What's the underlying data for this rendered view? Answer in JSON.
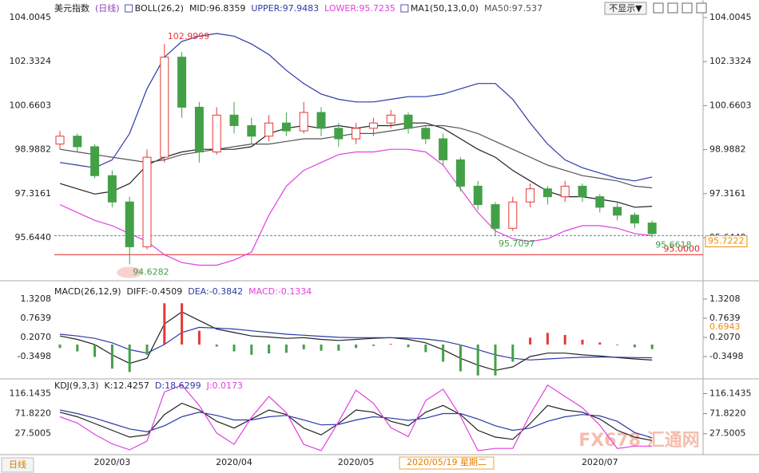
{
  "header": {
    "title": "美元指数",
    "period": "(日线)",
    "buttons": [
      "不显示▼"
    ],
    "tab": "日线",
    "watermark": "FX678 汇通网"
  },
  "chart_data": [
    {
      "type": "candlestick",
      "indicators": [
        "BOLL(26,2)",
        "MA1(50,13,0,0)"
      ],
      "categories": [
        null,
        null,
        null,
        "2020/03",
        null,
        null,
        null,
        null,
        null,
        null,
        "2020/04",
        null,
        null,
        null,
        null,
        null,
        null,
        "2020/05",
        null,
        null,
        null,
        null,
        null,
        null,
        null,
        null,
        null,
        null,
        null,
        null,
        null,
        "2020/07",
        null,
        null,
        null
      ],
      "crosshair_label": "2020/05/19 星期二",
      "up_color": "#e53935",
      "down_color": "#43a047",
      "open": [
        99.2,
        99.5,
        99.1,
        98.0,
        97.0,
        95.3,
        98.7,
        102.5,
        100.6,
        98.9,
        100.3,
        99.9,
        99.5,
        100.0,
        99.7,
        100.4,
        99.8,
        99.4,
        99.8,
        100.0,
        100.3,
        99.8,
        99.4,
        98.6,
        97.6,
        96.9,
        96.0,
        97.0,
        97.5,
        97.2,
        97.6,
        97.2,
        96.8,
        96.5,
        96.2
      ],
      "high": [
        99.7,
        99.6,
        99.2,
        98.2,
        97.2,
        99.0,
        102.9999,
        102.7,
        100.8,
        100.6,
        100.8,
        100.2,
        100.3,
        100.4,
        100.8,
        100.6,
        100.0,
        100.0,
        100.2,
        100.5,
        100.4,
        99.9,
        99.6,
        98.7,
        97.8,
        97.0,
        97.2,
        97.7,
        97.6,
        97.8,
        97.7,
        97.3,
        97.0,
        96.6,
        96.3
      ],
      "low": [
        99.0,
        98.9,
        97.9,
        96.8,
        94.6282,
        95.2,
        98.5,
        100.2,
        98.5,
        98.8,
        99.6,
        99.2,
        99.3,
        99.5,
        99.6,
        99.5,
        99.1,
        99.2,
        99.5,
        99.8,
        99.6,
        99.2,
        98.4,
        97.4,
        96.7,
        95.7097,
        95.9,
        96.8,
        96.9,
        97.0,
        97.0,
        96.6,
        96.3,
        96.0,
        95.6618
      ],
      "close": [
        99.5,
        99.1,
        98.0,
        97.0,
        95.3,
        98.7,
        102.5,
        100.6,
        98.9,
        100.3,
        99.9,
        99.5,
        100.0,
        99.7,
        100.4,
        99.8,
        99.4,
        99.8,
        100.0,
        100.3,
        99.8,
        99.4,
        98.6,
        97.6,
        96.9,
        96.0,
        97.0,
        97.5,
        97.2,
        97.6,
        97.2,
        96.8,
        96.5,
        96.2,
        95.8
      ],
      "series": [
        {
          "name": "MID:96.8359",
          "color": "#222222",
          "values": [
            97.7,
            97.5,
            97.3,
            97.4,
            97.7,
            98.4,
            98.7,
            98.9,
            99.0,
            99.0,
            99.0,
            99.1,
            99.6,
            99.8,
            99.9,
            99.8,
            99.9,
            99.8,
            99.9,
            99.9,
            100.0,
            100.0,
            99.8,
            99.4,
            99.0,
            98.7,
            98.2,
            97.8,
            97.4,
            97.2,
            97.2,
            97.1,
            97.0,
            96.8,
            96.8359
          ]
        },
        {
          "name": "UPPER:97.9483",
          "color": "#2b3aa8",
          "values": [
            98.5,
            98.4,
            98.3,
            98.6,
            99.6,
            101.3,
            102.5,
            103.1,
            103.3,
            103.4,
            103.3,
            103.0,
            102.6,
            102.0,
            101.5,
            101.1,
            100.9,
            100.8,
            100.8,
            100.9,
            101.0,
            101.0,
            101.1,
            101.3,
            101.5,
            101.5,
            100.9,
            100.0,
            99.2,
            98.6,
            98.3,
            98.1,
            97.9,
            97.8,
            97.9483
          ]
        },
        {
          "name": "LOWER:95.7235",
          "color": "#e040e0",
          "values": [
            96.9,
            96.6,
            96.3,
            96.1,
            95.8,
            95.5,
            95.0,
            94.7,
            94.6,
            94.6,
            94.8,
            95.1,
            96.5,
            97.6,
            98.2,
            98.5,
            98.8,
            98.9,
            98.9,
            99.0,
            99.0,
            98.9,
            98.4,
            97.5,
            96.6,
            95.9,
            95.6,
            95.5,
            95.6,
            95.9,
            96.1,
            96.1,
            96.0,
            95.8,
            95.7235
          ]
        },
        {
          "name": "MA50:97.537",
          "color": "#555555",
          "values": [
            99.0,
            98.9,
            98.8,
            98.7,
            98.6,
            98.5,
            98.6,
            98.8,
            98.9,
            99.0,
            99.1,
            99.2,
            99.2,
            99.3,
            99.4,
            99.4,
            99.5,
            99.6,
            99.6,
            99.7,
            99.8,
            99.9,
            99.9,
            99.8,
            99.6,
            99.3,
            99.0,
            98.7,
            98.4,
            98.2,
            98.0,
            97.9,
            97.8,
            97.6,
            97.537
          ]
        }
      ],
      "annotations": [
        {
          "value": 102.9999,
          "color": "#e53935"
        },
        {
          "value": 94.6282,
          "color": "#43a047"
        },
        {
          "value": 95.7097,
          "color": "#43a047"
        },
        {
          "value": 95.6618,
          "color": "#43a047"
        }
      ],
      "hlines": [
        {
          "value": 95,
          "label": "95.0000",
          "color": "#e02020"
        },
        {
          "value": 95.7222,
          "color": "#3a8fd8",
          "label_color": "#f08c00",
          "style": "dashed"
        }
      ],
      "ylim": [
        94.22,
        104.52
      ],
      "yticks": [
        104.0045,
        102.3324,
        100.6603,
        98.9882,
        97.3161,
        {
          "value": 95.644,
          "label": "95.6440"
        }
      ]
    },
    {
      "type": "macd",
      "indicators": [
        "MACD(26,12,9)"
      ],
      "up_color": "#e53935",
      "down_color": "#43a047",
      "series": [
        {
          "name": "DIFF:-0.4509",
          "color": "#222222",
          "values": [
            0.25,
            0.15,
            0.0,
            -0.3,
            -0.55,
            -0.4,
            0.6,
            0.95,
            0.7,
            0.45,
            0.35,
            0.25,
            0.22,
            0.18,
            0.2,
            0.15,
            0.12,
            0.15,
            0.18,
            0.2,
            0.15,
            0.05,
            -0.15,
            -0.4,
            -0.6,
            -0.75,
            -0.65,
            -0.35,
            -0.25,
            -0.25,
            -0.3,
            -0.33,
            -0.38,
            -0.42,
            -0.4509
          ]
        },
        {
          "name": "DEA:-0.3842",
          "color": "#2b3aa8",
          "values": [
            0.3,
            0.25,
            0.18,
            0.05,
            -0.15,
            -0.25,
            0.0,
            0.35,
            0.5,
            0.48,
            0.45,
            0.4,
            0.35,
            0.3,
            0.27,
            0.24,
            0.21,
            0.2,
            0.2,
            0.2,
            0.19,
            0.16,
            0.1,
            -0.01,
            -0.15,
            -0.3,
            -0.4,
            -0.45,
            -0.42,
            -0.39,
            -0.37,
            -0.36,
            -0.37,
            -0.38,
            -0.3842
          ]
        },
        {
          "name": "MACD:-0.1334",
          "color": "#e040e0",
          "type": "bar",
          "values": [
            -0.1,
            -0.2,
            -0.36,
            -0.7,
            -0.8,
            -0.3,
            1.2,
            1.2,
            0.4,
            -0.06,
            -0.2,
            -0.3,
            -0.26,
            -0.24,
            -0.14,
            -0.18,
            -0.18,
            -0.1,
            -0.04,
            0.02,
            -0.08,
            -0.22,
            -0.5,
            -0.78,
            -0.9,
            -0.9,
            -0.5,
            0.2,
            0.34,
            0.28,
            0.14,
            0.06,
            -0.02,
            -0.08,
            -0.1334
          ]
        }
      ],
      "price_label": 0.6943,
      "ylim": [
        -0.883,
        1.669
      ],
      "yticks": [
        1.3208,
        0.7639,
        {
          "value": 0.207,
          "label": "0.2070"
        },
        -0.3498
      ]
    },
    {
      "type": "kdj",
      "indicators": [
        "KDJ(9,3,3)"
      ],
      "series": [
        {
          "name": "K:12.4257",
          "color": "#222222",
          "values": [
            75,
            65,
            50,
            35,
            20,
            25,
            70,
            95,
            80,
            55,
            40,
            60,
            80,
            70,
            40,
            25,
            50,
            80,
            75,
            55,
            45,
            75,
            90,
            70,
            35,
            20,
            15,
            50,
            90,
            80,
            75,
            60,
            35,
            20,
            12.4257
          ]
        },
        {
          "name": "D:18.6299",
          "color": "#2b3aa8",
          "values": [
            80,
            72,
            62,
            50,
            38,
            32,
            45,
            65,
            75,
            68,
            58,
            58,
            65,
            68,
            58,
            47,
            48,
            58,
            65,
            62,
            57,
            62,
            72,
            72,
            60,
            45,
            35,
            40,
            55,
            65,
            70,
            67,
            55,
            30,
            18.6299
          ]
        },
        {
          "name": "J:0.0173",
          "color": "#e040e0",
          "values": [
            65,
            51,
            26,
            5,
            -8,
            11,
            120,
            135,
            90,
            29,
            4,
            64,
            110,
            74,
            4,
            -10,
            54,
            124,
            95,
            41,
            21,
            101,
            126,
            66,
            -10,
            -5,
            -5,
            70,
            135,
            110,
            85,
            46,
            -5,
            0,
            0.0173
          ]
        }
      ],
      "ylim": [
        -10,
        140
      ],
      "yticks": [
        {
          "value": 116.1435,
          "label": "116.1435"
        },
        {
          "value": 71.822,
          "label": "71.8220"
        },
        27.5005
      ]
    }
  ]
}
